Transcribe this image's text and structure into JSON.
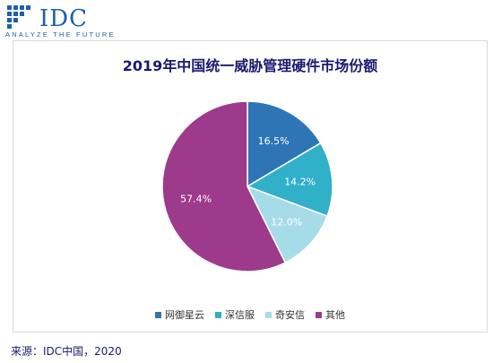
{
  "logo": {
    "text": "IDC",
    "tagline": "ANALYZE THE FUTURE"
  },
  "source": "来源：IDC中国，2020",
  "colors": {
    "title": "#1a1a70",
    "brand": "#1f5fa8"
  },
  "chart_data": {
    "type": "pie",
    "title": "2019年中国统一威胁管理硬件市场份额",
    "legend_position": "bottom",
    "slices": [
      {
        "name": "网御星云",
        "value": 16.5,
        "label": "16.5%",
        "color": "#2e75b6"
      },
      {
        "name": "深信服",
        "value": 14.2,
        "label": "14.2%",
        "color": "#31b0c9"
      },
      {
        "name": "奇安信",
        "value": 12.0,
        "label": "12.0%",
        "color": "#a6dce8"
      },
      {
        "name": "其他",
        "value": 57.4,
        "label": "57.4%",
        "color": "#9e3a8c"
      }
    ]
  }
}
